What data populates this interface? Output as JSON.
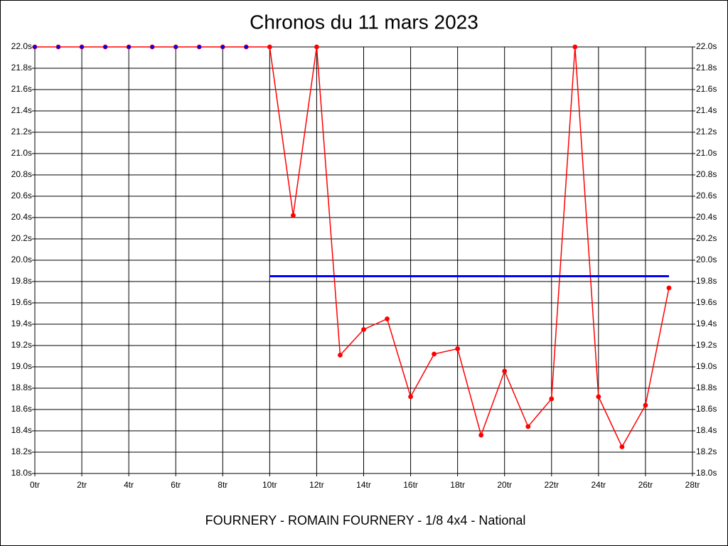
{
  "chart_data": {
    "type": "line",
    "title": "Chronos du 11 mars 2023",
    "x_label": "FOURNERY - ROMAIN FOURNERY - 1/8 4x4 - National",
    "xlim": [
      0,
      28
    ],
    "xticks": [
      {
        "value": 0,
        "label": "0tr"
      },
      {
        "value": 2,
        "label": "2tr"
      },
      {
        "value": 4,
        "label": "4tr"
      },
      {
        "value": 6,
        "label": "6tr"
      },
      {
        "value": 8,
        "label": "8tr"
      },
      {
        "value": 10,
        "label": "10tr"
      },
      {
        "value": 12,
        "label": "12tr"
      },
      {
        "value": 14,
        "label": "14tr"
      },
      {
        "value": 16,
        "label": "16tr"
      },
      {
        "value": 18,
        "label": "18tr"
      },
      {
        "value": 20,
        "label": "20tr"
      },
      {
        "value": 22,
        "label": "22tr"
      },
      {
        "value": 24,
        "label": "24tr"
      },
      {
        "value": 26,
        "label": "26tr"
      },
      {
        "value": 28,
        "label": "28tr"
      }
    ],
    "ylim": [
      18.0,
      22.0
    ],
    "yticks": [
      {
        "value": 18.0,
        "label": "18.0s"
      },
      {
        "value": 18.2,
        "label": "18.2s"
      },
      {
        "value": 18.4,
        "label": "18.4s"
      },
      {
        "value": 18.6,
        "label": "18.6s"
      },
      {
        "value": 18.8,
        "label": "18.8s"
      },
      {
        "value": 19.0,
        "label": "19.0s"
      },
      {
        "value": 19.2,
        "label": "19.2s"
      },
      {
        "value": 19.4,
        "label": "19.4s"
      },
      {
        "value": 19.6,
        "label": "19.6s"
      },
      {
        "value": 19.8,
        "label": "19.8s"
      },
      {
        "value": 20.0,
        "label": "20.0s"
      },
      {
        "value": 20.2,
        "label": "20.2s"
      },
      {
        "value": 20.4,
        "label": "20.4s"
      },
      {
        "value": 20.6,
        "label": "20.6s"
      },
      {
        "value": 20.8,
        "label": "20.8s"
      },
      {
        "value": 21.0,
        "label": "21.0s"
      },
      {
        "value": 21.2,
        "label": "21.2s"
      },
      {
        "value": 21.4,
        "label": "21.4s"
      },
      {
        "value": 21.6,
        "label": "21.6s"
      },
      {
        "value": 21.8,
        "label": "21.8s"
      },
      {
        "value": 22.0,
        "label": "22.0s"
      }
    ],
    "grid": true,
    "series": [
      {
        "color": "#ff0000",
        "x": [
          0,
          1,
          2,
          3,
          4,
          5,
          6,
          7,
          8,
          9,
          10,
          11,
          12,
          13,
          14,
          15,
          16,
          17,
          18,
          19,
          20,
          21,
          22,
          23,
          24,
          25,
          26,
          27
        ],
        "values": [
          22.0,
          22.0,
          22.0,
          22.0,
          22.0,
          22.0,
          22.0,
          22.0,
          22.0,
          22.0,
          22.0,
          20.42,
          22.0,
          19.11,
          19.35,
          19.45,
          18.72,
          19.12,
          19.17,
          18.36,
          18.96,
          18.44,
          18.7,
          22.0,
          18.72,
          18.25,
          18.64,
          19.74
        ],
        "marker_colors": [
          "#0000ff",
          "#0000ff",
          "#0000ff",
          "#0000ff",
          "#0000ff",
          "#0000ff",
          "#0000ff",
          "#0000ff",
          "#0000ff",
          "#0000ff",
          "#ff0000",
          "#ff0000",
          "#ff0000",
          "#ff0000",
          "#ff0000",
          "#ff0000",
          "#ff0000",
          "#ff0000",
          "#ff0000",
          "#ff0000",
          "#ff0000",
          "#ff0000",
          "#ff0000",
          "#ff0000",
          "#ff0000",
          "#ff0000",
          "#ff0000",
          "#ff0000"
        ]
      },
      {
        "color": "#0000ff",
        "x": [
          10,
          27
        ],
        "values": [
          19.85,
          19.85
        ]
      }
    ]
  }
}
